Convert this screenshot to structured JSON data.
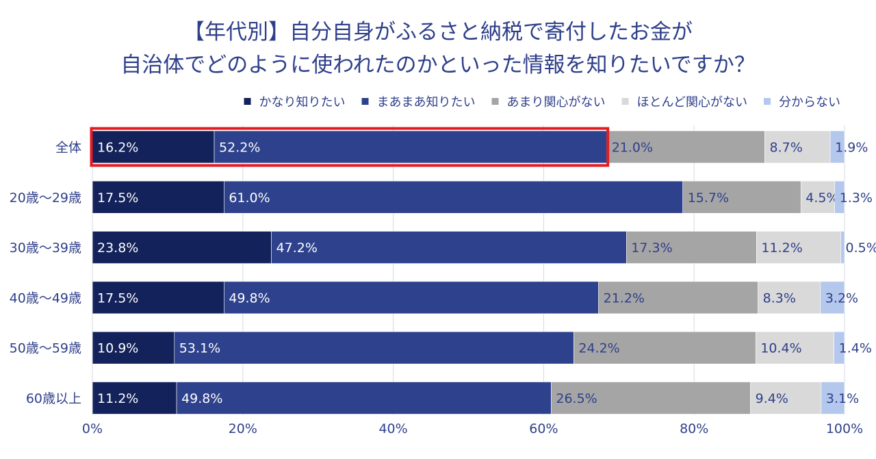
{
  "title_lines": [
    "【年代別】自分自身がふるさと納税で寄付したお金が",
    "自治体でどのように使われたのかといった情報を知りたいですか？"
  ],
  "chart_data": {
    "type": "bar",
    "orientation": "horizontal",
    "stacked": true,
    "percent": true,
    "categories": [
      "全体",
      "20歳〜29歳",
      "30歳〜39歳",
      "40歳〜49歳",
      "50歳〜59歳",
      "60歳以上"
    ],
    "series": [
      {
        "name": "かなり知りたい",
        "color": "#13225a",
        "label_color": "#ffffff",
        "values": [
          16.2,
          17.5,
          23.8,
          17.5,
          10.9,
          11.2
        ],
        "labels": [
          "16.2%",
          "17.5%",
          "23.8%",
          "17.5%",
          "10.9%",
          "11.2%"
        ]
      },
      {
        "name": "まあまあ知りたい",
        "color": "#2e418c",
        "label_color": "#ffffff",
        "values": [
          52.2,
          61.0,
          47.2,
          49.8,
          53.1,
          49.8
        ],
        "labels": [
          "52.2%",
          "61.0%",
          "47.2%",
          "49.8%",
          "53.1%",
          "49.8%"
        ]
      },
      {
        "name": "あまり関心がない",
        "color": "#a5a5a5",
        "label_color": "#2e3f8a",
        "values": [
          21.0,
          15.7,
          17.3,
          21.2,
          24.2,
          26.5
        ],
        "labels": [
          "21.0%",
          "15.7%",
          "17.3%",
          "21.2%",
          "24.2%",
          "26.5%"
        ]
      },
      {
        "name": "ほとんど関心がない",
        "color": "#d9d9d9",
        "label_color": "#2e3f8a",
        "values": [
          8.7,
          4.5,
          11.2,
          8.3,
          10.4,
          9.4
        ],
        "labels": [
          "8.7%",
          "4.5%",
          "11.2%",
          "8.3%",
          "10.4%",
          "9.4%"
        ]
      },
      {
        "name": "分からない",
        "color": "#b4c7ed",
        "label_color": "#2e3f8a",
        "values": [
          1.9,
          1.3,
          0.5,
          3.2,
          1.4,
          3.1
        ],
        "labels": [
          "1.9%",
          "1.3%",
          "0.5%",
          "3.2%",
          "1.4%",
          "3.1%"
        ]
      }
    ],
    "xlim": [
      0,
      100
    ],
    "x_ticks": [
      "0%",
      "20%",
      "40%",
      "60%",
      "80%",
      "100%"
    ],
    "grid": true,
    "legend": "top",
    "highlight": {
      "category": "全体",
      "series": [
        "かなり知りたい",
        "まあまあ知りたい"
      ],
      "color": "#e31b23"
    },
    "text_color": "#2e3f8a",
    "grid_color": "#d4d8e2"
  }
}
